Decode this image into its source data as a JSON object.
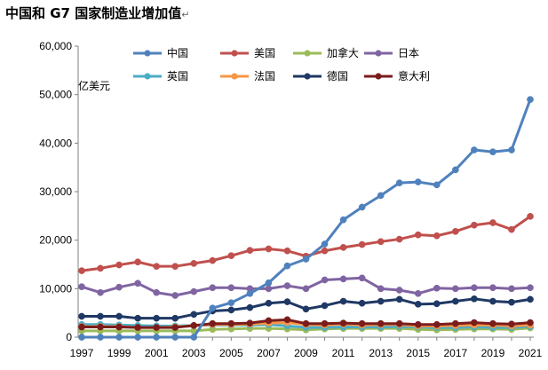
{
  "chart_data": {
    "type": "line",
    "title": "中国和 G7 国家制造业增加值",
    "title_suffix": "↵",
    "ylabel": "亿美元",
    "xlabel": "",
    "ylim": [
      0,
      60000
    ],
    "yticks": [
      0,
      10000,
      20000,
      30000,
      40000,
      50000,
      60000
    ],
    "ytick_labels": [
      "0",
      "10,000",
      "20,000",
      "30,000",
      "40,000",
      "50,000",
      "60,000"
    ],
    "x": [
      1997,
      1998,
      1999,
      2000,
      2001,
      2002,
      2003,
      2004,
      2005,
      2006,
      2007,
      2008,
      2009,
      2010,
      2011,
      2012,
      2013,
      2014,
      2015,
      2016,
      2017,
      2018,
      2019,
      2020,
      2021
    ],
    "xtick_labels": [
      "1997",
      "1999",
      "2001",
      "2003",
      "2005",
      "2007",
      "2009",
      "2011",
      "2013",
      "2015",
      "2017",
      "2019",
      "2021"
    ],
    "grid": false,
    "legend_position": "top",
    "series": [
      {
        "name": "中国",
        "color": "#4f81bd",
        "values": [
          0,
          0,
          0,
          0,
          0,
          0,
          0,
          6000,
          7100,
          9000,
          11200,
          14700,
          16100,
          19200,
          24200,
          26800,
          29200,
          31800,
          32000,
          31400,
          34500,
          38600,
          38200,
          38600,
          49000
        ]
      },
      {
        "name": "美国",
        "color": "#c0504d",
        "values": [
          13700,
          14200,
          14900,
          15500,
          14600,
          14600,
          15200,
          15800,
          16800,
          17900,
          18200,
          17800,
          16700,
          17800,
          18500,
          19100,
          19700,
          20200,
          21100,
          20900,
          21800,
          23100,
          23600,
          22200,
          24900
        ]
      },
      {
        "name": "加拿大",
        "color": "#9bbb59",
        "values": [
          1300,
          1300,
          1300,
          1300,
          1300,
          1300,
          1300,
          1600,
          1700,
          1800,
          1800,
          1700,
          1500,
          1700,
          1800,
          1800,
          1800,
          1800,
          1600,
          1500,
          1600,
          1700,
          1700,
          1600,
          1900
        ]
      },
      {
        "name": "日本",
        "color": "#8064a2",
        "values": [
          10400,
          9200,
          10300,
          11100,
          9200,
          8600,
          9400,
          10200,
          10200,
          10000,
          10000,
          10600,
          10000,
          11800,
          12000,
          12200,
          10000,
          9700,
          9000,
          10100,
          10000,
          10200,
          10200,
          10000,
          10200
        ]
      },
      {
        "name": "英国",
        "color": "#4bacc6",
        "values": [
          2600,
          2600,
          2500,
          2400,
          2300,
          2300,
          2400,
          2500,
          2500,
          2500,
          2600,
          2300,
          2000,
          2000,
          2100,
          2100,
          2100,
          2200,
          2100,
          2000,
          2000,
          2100,
          2000,
          2000,
          2200
        ]
      },
      {
        "name": "法国",
        "color": "#f79646",
        "values": [
          2200,
          2200,
          2200,
          2000,
          2000,
          2100,
          2400,
          2600,
          2600,
          2700,
          2900,
          3000,
          2600,
          2500,
          2700,
          2500,
          2600,
          2600,
          2300,
          2300,
          2400,
          2500,
          2500,
          2300,
          2500
        ]
      },
      {
        "name": "德国",
        "color": "#1f3864",
        "values": [
          4300,
          4300,
          4300,
          3900,
          3900,
          3900,
          4700,
          5400,
          5600,
          6100,
          7000,
          7300,
          5800,
          6500,
          7400,
          7000,
          7400,
          7800,
          6800,
          6900,
          7400,
          7900,
          7400,
          7200,
          7800
        ]
      },
      {
        "name": "意大利",
        "color": "#7b1c1c",
        "values": [
          2100,
          2100,
          2100,
          2000,
          2000,
          2000,
          2400,
          2800,
          2800,
          2900,
          3400,
          3600,
          2800,
          2800,
          2900,
          2800,
          2800,
          2800,
          2600,
          2600,
          2800,
          3000,
          2800,
          2700,
          3000
        ]
      }
    ]
  }
}
